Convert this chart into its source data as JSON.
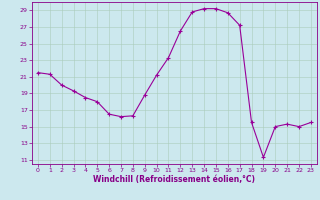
{
  "hours": [
    0,
    1,
    2,
    3,
    4,
    5,
    6,
    7,
    8,
    9,
    10,
    11,
    12,
    13,
    14,
    15,
    16,
    17,
    18,
    19,
    20,
    21,
    22,
    23
  ],
  "windchill": [
    21.5,
    21.3,
    20.0,
    19.3,
    18.5,
    18.0,
    16.5,
    16.2,
    16.3,
    18.8,
    21.2,
    23.3,
    26.5,
    28.8,
    29.2,
    29.2,
    28.7,
    27.2,
    15.5,
    11.3,
    15.0,
    15.3,
    15.0,
    15.5
  ],
  "line_color": "#990099",
  "marker": "+",
  "bg_color": "#cce8ee",
  "grid_color": "#aaccbb",
  "xlabel": "Windchill (Refroidissement éolien,°C)",
  "xlim": [
    -0.5,
    23.5
  ],
  "ylim": [
    10.5,
    30
  ],
  "yticks": [
    11,
    13,
    15,
    17,
    19,
    21,
    23,
    25,
    27,
    29
  ],
  "xticks": [
    0,
    1,
    2,
    3,
    4,
    5,
    6,
    7,
    8,
    9,
    10,
    11,
    12,
    13,
    14,
    15,
    16,
    17,
    18,
    19,
    20,
    21,
    22,
    23
  ],
  "tick_color": "#880088",
  "label_color": "#880088",
  "spine_color": "#880088",
  "tick_fontsize": 4.5,
  "xlabel_fontsize": 5.5
}
